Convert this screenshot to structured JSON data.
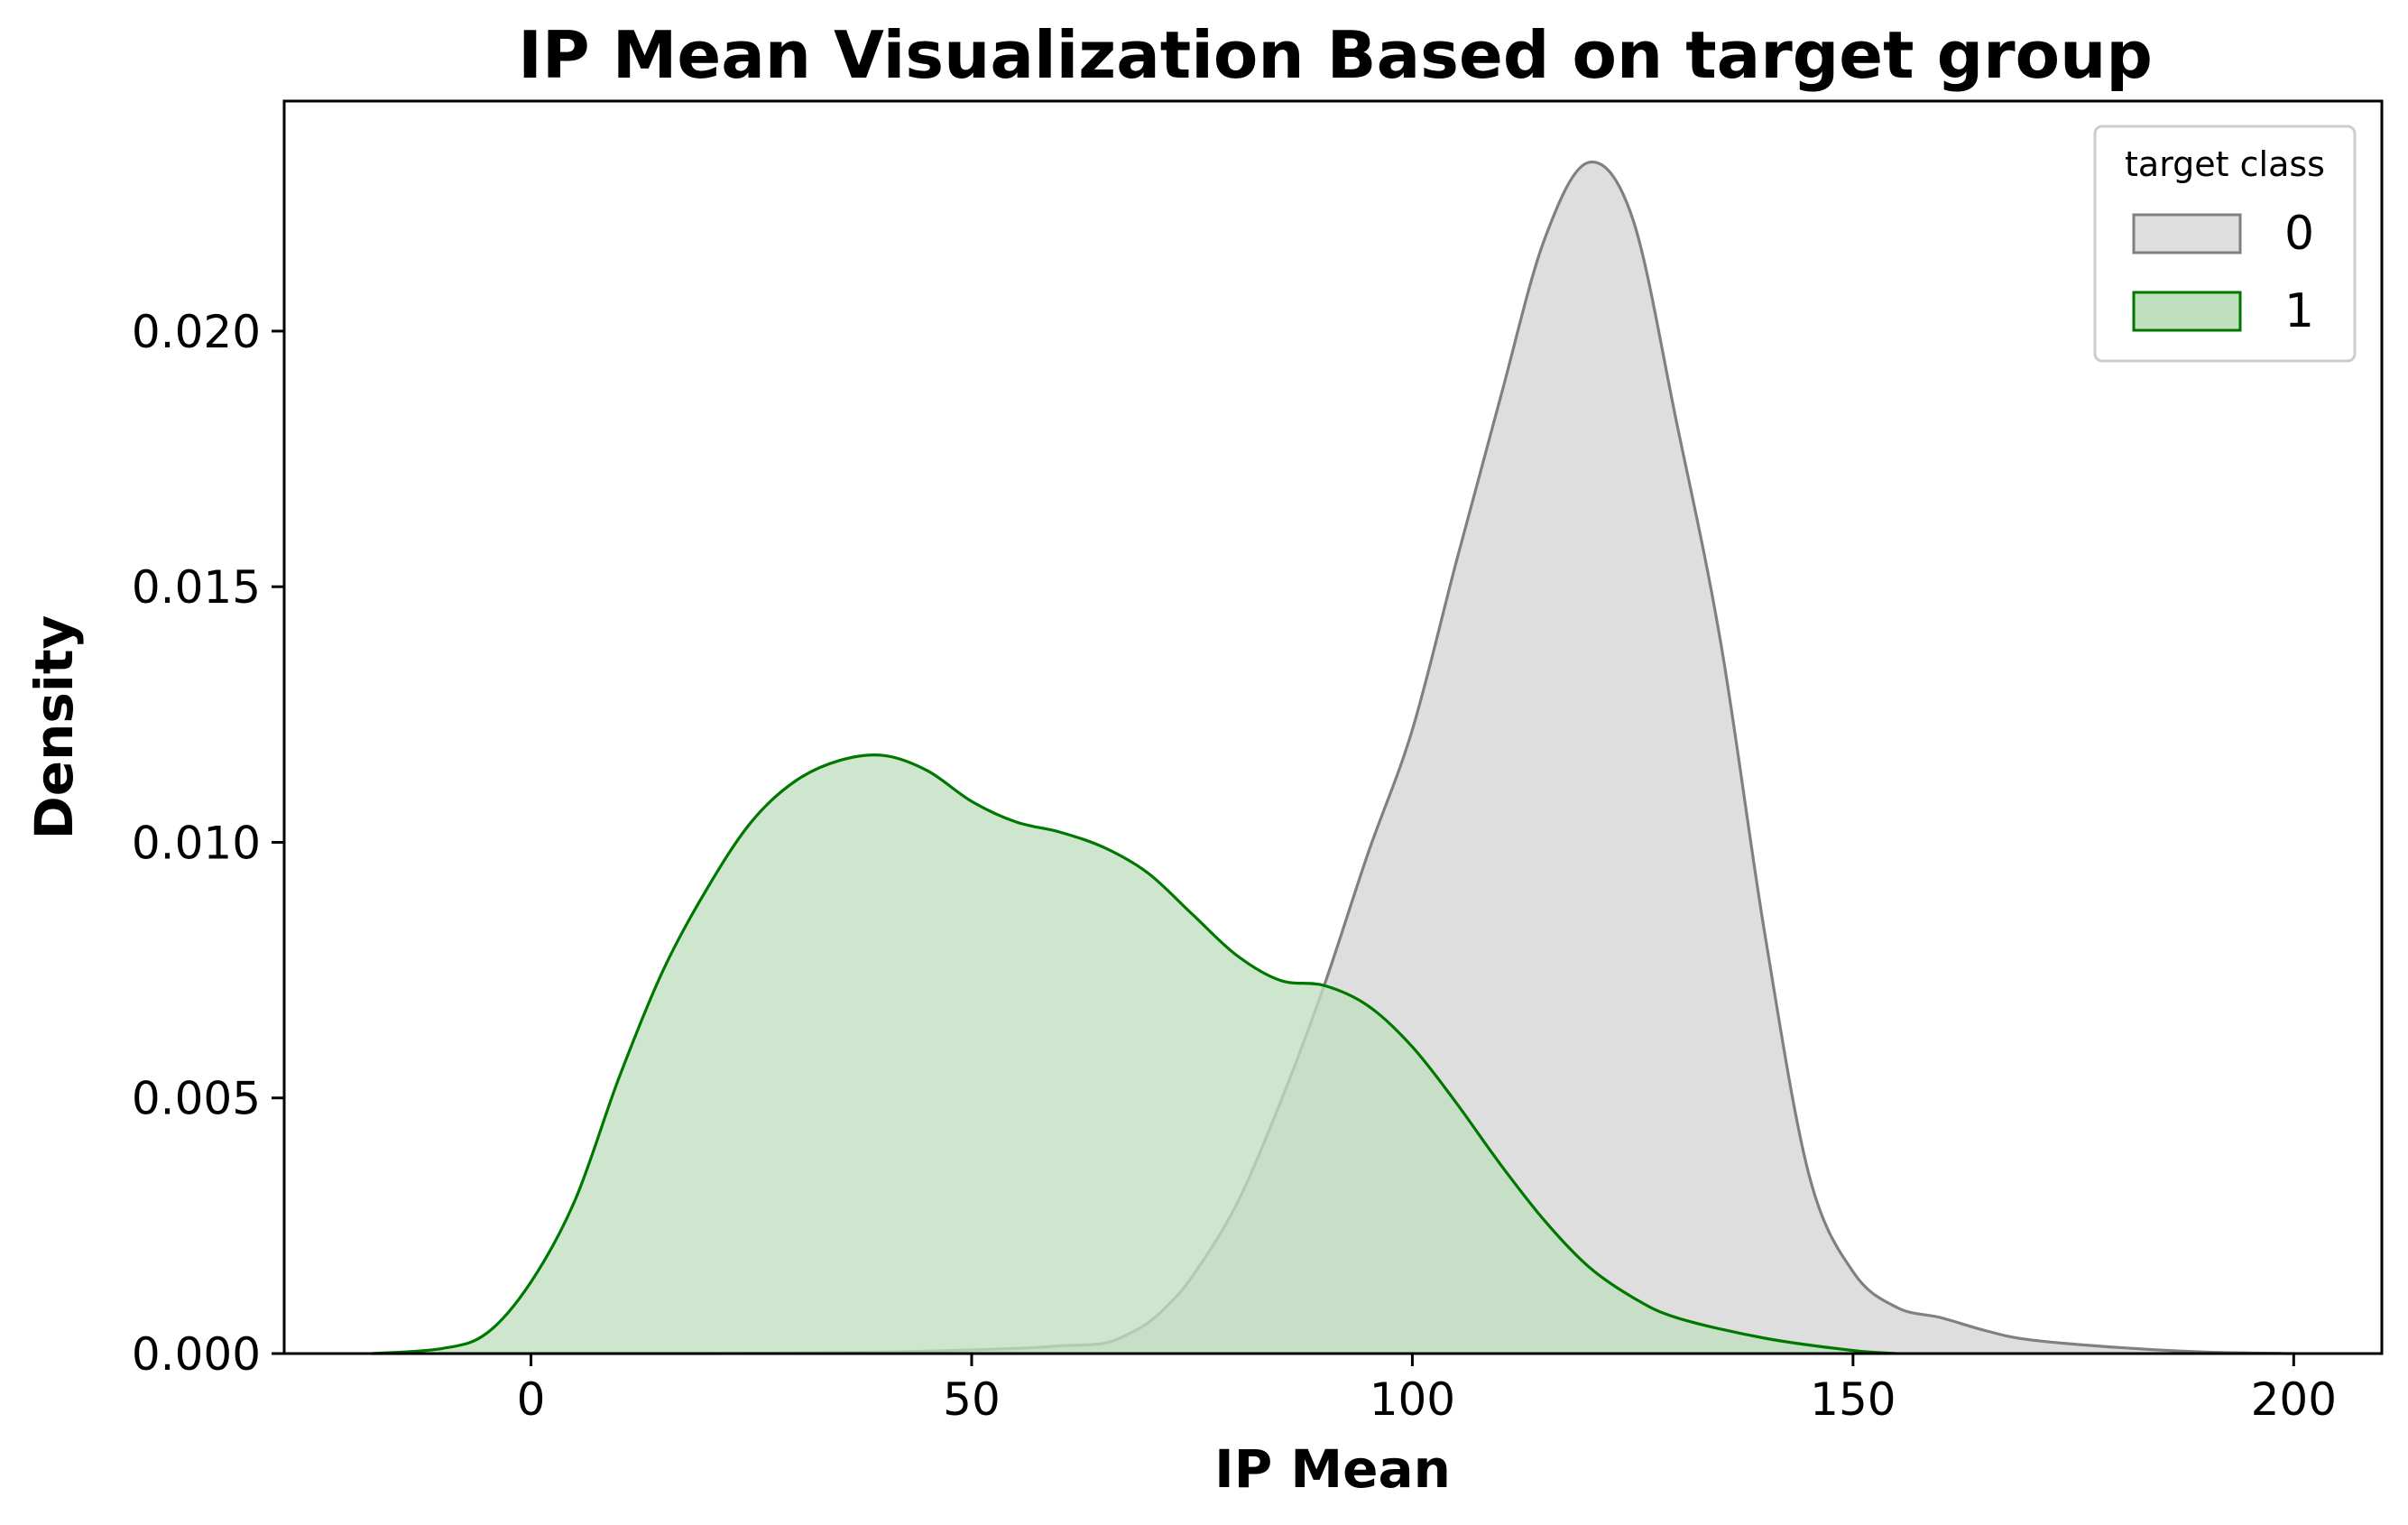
{
  "chart_data": {
    "type": "area",
    "title": "IP Mean Visualization Based on target group",
    "xlabel": "IP Mean",
    "ylabel": "Density",
    "xlim": [
      -28,
      210
    ],
    "ylim": [
      0,
      0.0245
    ],
    "x_ticks": [
      0,
      50,
      100,
      150,
      200
    ],
    "x_tick_labels": [
      "0",
      "50",
      "100",
      "150",
      "200"
    ],
    "y_ticks": [
      0,
      0.005,
      0.01,
      0.015,
      0.02
    ],
    "y_tick_labels": [
      "0.000",
      "0.005",
      "0.010",
      "0.015",
      "0.020"
    ],
    "grid": false,
    "legend": {
      "title": "target class",
      "placement": "top-right"
    },
    "series": [
      {
        "name": "0",
        "line_color": "#808080",
        "fill_color": "#dedede",
        "x": [
          -18,
          0,
          20,
          40,
          55,
          60,
          65,
          68,
          70,
          72,
          75,
          80,
          85,
          90,
          95,
          100,
          105,
          110,
          115,
          120,
          125,
          130,
          135,
          140,
          145,
          150,
          155,
          160,
          165,
          170,
          180,
          190,
          200
        ],
        "y": [
          0,
          0,
          0,
          3e-05,
          0.0001,
          0.00015,
          0.0002,
          0.0004,
          0.0006,
          0.0009,
          0.0015,
          0.0029,
          0.0049,
          0.0072,
          0.0098,
          0.0122,
          0.0155,
          0.0187,
          0.0218,
          0.0233,
          0.0222,
          0.0182,
          0.0139,
          0.0082,
          0.0035,
          0.0016,
          0.0009,
          0.0007,
          0.00045,
          0.00027,
          0.00012,
          3e-05,
          0
        ]
      },
      {
        "name": "1",
        "line_color": "#007800",
        "fill_color": "#bfdfbf",
        "x": [
          -18,
          -10,
          -5,
          0,
          5,
          10,
          15,
          20,
          25,
          30,
          35,
          40,
          45,
          50,
          55,
          60,
          65,
          70,
          75,
          80,
          85,
          90,
          95,
          100,
          105,
          110,
          115,
          120,
          125,
          130,
          140,
          150,
          155
        ],
        "y": [
          0,
          0.0001,
          0.0004,
          0.0014,
          0.003,
          0.0054,
          0.0075,
          0.0091,
          0.0104,
          0.0112,
          0.0116,
          0.0117,
          0.0114,
          0.0108,
          0.0104,
          0.0102,
          0.0099,
          0.0094,
          0.0086,
          0.0078,
          0.0073,
          0.0072,
          0.0068,
          0.006,
          0.0049,
          0.0037,
          0.0026,
          0.0017,
          0.0011,
          0.0007,
          0.0003,
          6e-05,
          0
        ]
      }
    ]
  }
}
